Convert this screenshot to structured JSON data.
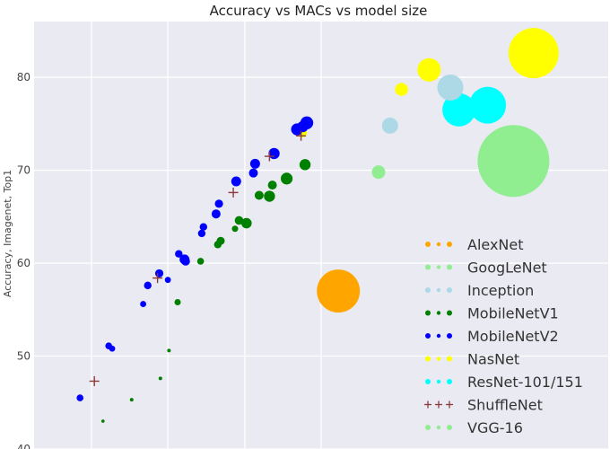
{
  "chart_data": {
    "type": "scatter",
    "title": "Accuracy vs MACs vs model size",
    "xlabel": "",
    "ylabel": "Accuracy, Imagenet, Top1",
    "xlim": [
      0,
      10
    ],
    "ylim": [
      40,
      86
    ],
    "yticks": [
      40,
      50,
      60,
      70,
      80
    ],
    "xtick_positions": [
      1,
      2.33,
      3.67,
      5
    ],
    "grid": true,
    "background": "#eaeaf2",
    "legend_position": "lower-right",
    "series": [
      {
        "name": "AlexNet",
        "color": "#ffa500",
        "marker": "o",
        "points": [
          {
            "x": 5.3,
            "y": 57.0,
            "size": 2.4
          }
        ]
      },
      {
        "name": "GoogLeNet",
        "color": "#90ee90",
        "marker": "o",
        "points": [
          {
            "x": 6.0,
            "y": 69.8,
            "size": 0.75
          }
        ]
      },
      {
        "name": "Inception",
        "color": "#add8e6",
        "marker": "o",
        "points": [
          {
            "x": 6.2,
            "y": 74.8,
            "size": 0.9
          },
          {
            "x": 7.25,
            "y": 78.9,
            "size": 1.45
          }
        ]
      },
      {
        "name": "MobileNetV1",
        "color": "#008000",
        "marker": "o",
        "points": [
          {
            "x": 1.2,
            "y": 43.0,
            "size": 0.18
          },
          {
            "x": 1.7,
            "y": 45.3,
            "size": 0.2
          },
          {
            "x": 2.2,
            "y": 47.6,
            "size": 0.2
          },
          {
            "x": 2.35,
            "y": 50.6,
            "size": 0.2
          },
          {
            "x": 2.5,
            "y": 55.8,
            "size": 0.35
          },
          {
            "x": 2.9,
            "y": 60.2,
            "size": 0.38
          },
          {
            "x": 3.2,
            "y": 62.0,
            "size": 0.42
          },
          {
            "x": 3.25,
            "y": 62.4,
            "size": 0.45
          },
          {
            "x": 3.5,
            "y": 63.7,
            "size": 0.35
          },
          {
            "x": 3.57,
            "y": 64.6,
            "size": 0.48
          },
          {
            "x": 3.7,
            "y": 64.3,
            "size": 0.58
          },
          {
            "x": 3.92,
            "y": 67.3,
            "size": 0.5
          },
          {
            "x": 4.1,
            "y": 67.2,
            "size": 0.62
          },
          {
            "x": 4.15,
            "y": 68.4,
            "size": 0.5
          },
          {
            "x": 4.4,
            "y": 69.1,
            "size": 0.66
          },
          {
            "x": 4.72,
            "y": 70.6,
            "size": 0.62
          }
        ]
      },
      {
        "name": "MobileNetV2",
        "color": "#0000ff",
        "marker": "o",
        "points": [
          {
            "x": 0.8,
            "y": 45.5,
            "size": 0.38
          },
          {
            "x": 1.3,
            "y": 51.1,
            "size": 0.38
          },
          {
            "x": 1.36,
            "y": 50.8,
            "size": 0.34
          },
          {
            "x": 1.9,
            "y": 55.6,
            "size": 0.34
          },
          {
            "x": 1.98,
            "y": 57.6,
            "size": 0.42
          },
          {
            "x": 2.18,
            "y": 58.9,
            "size": 0.46
          },
          {
            "x": 2.33,
            "y": 58.2,
            "size": 0.34
          },
          {
            "x": 2.52,
            "y": 61.0,
            "size": 0.42
          },
          {
            "x": 2.62,
            "y": 60.4,
            "size": 0.55
          },
          {
            "x": 2.64,
            "y": 60.2,
            "size": 0.48
          },
          {
            "x": 2.92,
            "y": 63.2,
            "size": 0.42
          },
          {
            "x": 2.95,
            "y": 63.9,
            "size": 0.42
          },
          {
            "x": 3.17,
            "y": 65.3,
            "size": 0.5
          },
          {
            "x": 3.22,
            "y": 66.4,
            "size": 0.46
          },
          {
            "x": 3.52,
            "y": 68.8,
            "size": 0.55
          },
          {
            "x": 3.82,
            "y": 69.7,
            "size": 0.5
          },
          {
            "x": 3.85,
            "y": 70.7,
            "size": 0.55
          },
          {
            "x": 4.18,
            "y": 71.8,
            "size": 0.62
          },
          {
            "x": 4.58,
            "y": 74.4,
            "size": 0.66
          },
          {
            "x": 4.68,
            "y": 74.7,
            "size": 0.62
          },
          {
            "x": 4.75,
            "y": 75.1,
            "size": 0.72
          }
        ]
      },
      {
        "name": "NasNet",
        "color": "#ffff00",
        "marker": "o",
        "points": [
          {
            "x": 4.68,
            "y": 74.0,
            "size": 0.48
          },
          {
            "x": 6.4,
            "y": 78.7,
            "size": 0.72
          },
          {
            "x": 6.88,
            "y": 80.8,
            "size": 1.3
          },
          {
            "x": 8.7,
            "y": 82.6,
            "size": 2.8
          }
        ]
      },
      {
        "name": "ResNet-101/151",
        "color": "#00ffff",
        "marker": "o",
        "points": [
          {
            "x": 7.4,
            "y": 76.5,
            "size": 1.85
          },
          {
            "x": 7.9,
            "y": 77.0,
            "size": 2.05
          }
        ]
      },
      {
        "name": "ShuffleNet",
        "color": "#8b3a3a",
        "marker": "+",
        "points": [
          {
            "x": 1.05,
            "y": 47.3,
            "size": 0.55
          },
          {
            "x": 2.15,
            "y": 58.4,
            "size": 0.55
          },
          {
            "x": 3.47,
            "y": 67.6,
            "size": 0.55
          },
          {
            "x": 4.1,
            "y": 71.5,
            "size": 0.55
          },
          {
            "x": 4.65,
            "y": 73.7,
            "size": 0.55
          }
        ]
      },
      {
        "name": "VGG-16",
        "color": "#90ee90",
        "marker": "o",
        "points": [
          {
            "x": 8.35,
            "y": 71.0,
            "size": 4.0
          }
        ]
      }
    ]
  }
}
